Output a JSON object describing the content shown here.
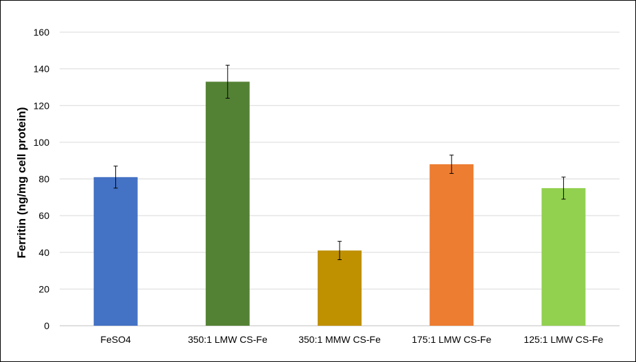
{
  "chart_data": {
    "type": "bar",
    "title": "",
    "xlabel": "",
    "ylabel": "Ferritin (ng/mg cell protein)",
    "ylim": [
      0,
      160
    ],
    "yticks": [
      0,
      20,
      40,
      60,
      80,
      100,
      120,
      140,
      160
    ],
    "grid": true,
    "legend": "none",
    "categories": [
      "FeSO4",
      "350:1 LMW CS-Fe",
      "350:1 MMW CS-Fe",
      "175:1 LMW CS-Fe",
      "125:1 LMW CS-Fe"
    ],
    "values": [
      81,
      133,
      41,
      88,
      75
    ],
    "error": [
      6,
      9,
      5,
      5,
      6
    ],
    "colors": [
      "#4472C4",
      "#548235",
      "#BF9000",
      "#ED7D31",
      "#92D050"
    ]
  }
}
